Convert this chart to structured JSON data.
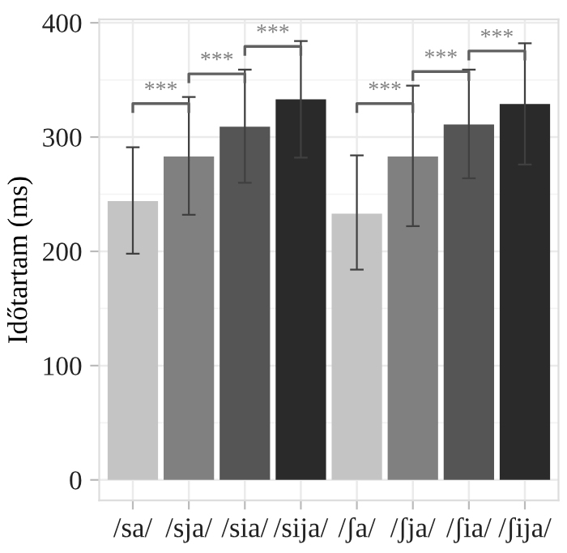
{
  "chart_data": {
    "type": "bar",
    "ylabel": "Időtartam (ms)",
    "categories": [
      "/sa/",
      "/sja/",
      "/sia/",
      "/sija/",
      "/ʃa/",
      "/ʃja/",
      "/ʃia/",
      "/ʃija/"
    ],
    "values": [
      244,
      283,
      309,
      333,
      233,
      283,
      311,
      329
    ],
    "colors": [
      "#c4c4c4",
      "#808080",
      "#555555",
      "#2a2a2a",
      "#c4c4c4",
      "#808080",
      "#555555",
      "#2a2a2a"
    ],
    "errors": [
      [
        198,
        291
      ],
      [
        232,
        335
      ],
      [
        260,
        359
      ],
      [
        282,
        384
      ],
      [
        184,
        284
      ],
      [
        222,
        345
      ],
      [
        264,
        359
      ],
      [
        276,
        382
      ]
    ],
    "ylim": [
      -18,
      403
    ],
    "yticks": [
      0,
      100,
      200,
      300,
      400
    ],
    "grid": true,
    "annotations": [
      "***",
      "***",
      "***",
      "***",
      "***",
      "***"
    ]
  }
}
